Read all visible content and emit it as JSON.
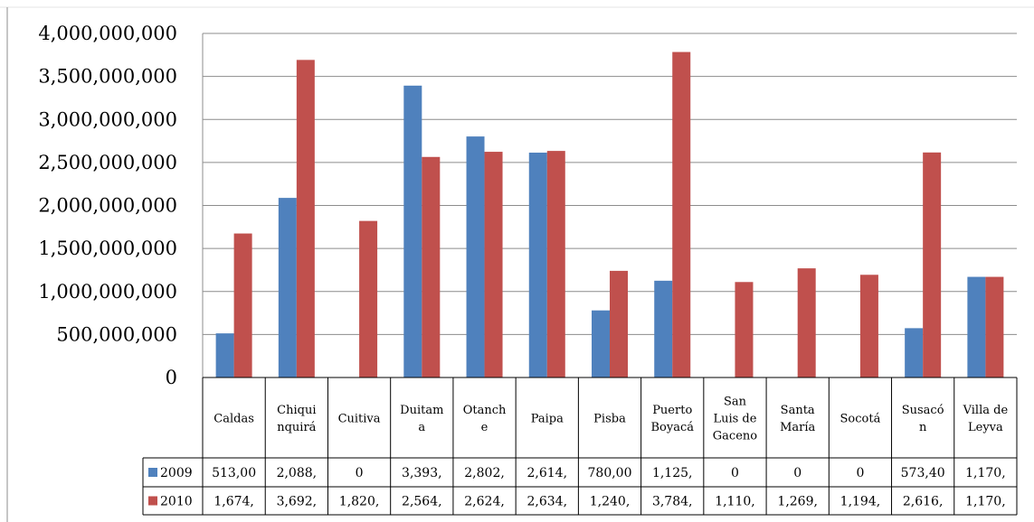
{
  "chart_data": {
    "type": "bar",
    "categories": [
      "Caldas",
      "Chiqui nquirá",
      "Cuitiva",
      "Duitam a",
      "Otanch e",
      "Paipa",
      "Pisba",
      "Puerto Boyacá",
      "San Luis de Gaceno",
      "Santa María",
      "Socotá",
      "Susacó n",
      "Villa de Leyva"
    ],
    "category_lines": [
      [
        "Caldas"
      ],
      [
        "Chiqui",
        "nquirá"
      ],
      [
        "Cuitiva"
      ],
      [
        "Duitam",
        "a"
      ],
      [
        "Otanch",
        "e"
      ],
      [
        "Paipa"
      ],
      [
        "Pisba"
      ],
      [
        "Puerto",
        "Boyacá"
      ],
      [
        "San",
        "Luis de",
        "Gaceno"
      ],
      [
        "Santa",
        "María"
      ],
      [
        "Socotá"
      ],
      [
        "Susacó",
        "n"
      ],
      [
        "Villa de",
        "Leyva"
      ]
    ],
    "series": [
      {
        "name": "2009",
        "color": "#4f81bd",
        "values": [
          513000000,
          2088000000,
          0,
          3393000000,
          2802000000,
          2614000000,
          780000000,
          1125000000,
          0,
          0,
          0,
          573400000,
          1170000000
        ],
        "table_labels": [
          "513,00",
          "2,088,",
          "0",
          "3,393,",
          "2,802,",
          "2,614,",
          "780,00",
          "1,125,",
          "0",
          "0",
          "0",
          "573,40",
          "1,170,"
        ]
      },
      {
        "name": "2010",
        "color": "#c0504d",
        "values": [
          1674000000,
          3692000000,
          1820000000,
          2564000000,
          2624000000,
          2634000000,
          1240000000,
          3784000000,
          1110000000,
          1269000000,
          1194000000,
          2616000000,
          1170000000
        ],
        "table_labels": [
          "1,674,",
          "3,692,",
          "1,820,",
          "2,564,",
          "2,624,",
          "2,634,",
          "1,240,",
          "3,784,",
          "1,110,",
          "1,269,",
          "1,194,",
          "2,616,",
          "1,170,"
        ]
      }
    ],
    "yticks": [
      "0",
      "500,000,000",
      "1,000,000,000",
      "1,500,000,000",
      "2,000,000,000",
      "2,500,000,000",
      "3,000,000,000",
      "3,500,000,000",
      "4,000,000,000"
    ],
    "ylim": [
      0,
      4000000000
    ],
    "grid": true,
    "legend": "data-table"
  }
}
